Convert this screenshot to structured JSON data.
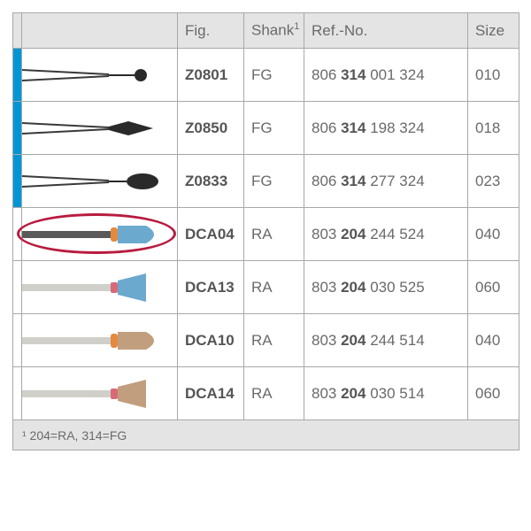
{
  "colors": {
    "border": "#a8a8a8",
    "header_bg": "#e4e4e4",
    "text": "#6a6a6a",
    "text_bold": "#555555",
    "marker": "#0096d6",
    "circle": "#b81b3f",
    "shaft_dark": "#3a3a3a",
    "shaft_light": "#d0cfc9",
    "tip_black": "#2a2a2a",
    "tip_blue": "#6ca9cf",
    "tip_tan": "#c19f7e",
    "band_orange": "#e38a3f",
    "band_pink": "#d86a78"
  },
  "headers": {
    "fig": "Fig.",
    "shank": "Shank",
    "shank_sup": "1",
    "ref": "Ref.-No.",
    "size": "Size"
  },
  "footnote": "¹ 204=RA, 314=FG",
  "rows": [
    {
      "marker": true,
      "circled": false,
      "fig": "Z0801",
      "shank": "FG",
      "ref_pre": "806 ",
      "ref_bold": "314",
      "ref_post": " 001 324",
      "size": "010",
      "shape": "ball",
      "shaft": "wire",
      "tip_color": "#2a2a2a"
    },
    {
      "marker": true,
      "circled": false,
      "fig": "Z0850",
      "shank": "FG",
      "ref_pre": "806 ",
      "ref_bold": "314",
      "ref_post": " 198 324",
      "size": "018",
      "shape": "taper",
      "shaft": "wire",
      "tip_color": "#2a2a2a"
    },
    {
      "marker": true,
      "circled": false,
      "fig": "Z0833",
      "shank": "FG",
      "ref_pre": "806 ",
      "ref_bold": "314",
      "ref_post": " 277 324",
      "size": "023",
      "shape": "oval",
      "shaft": "wire",
      "tip_color": "#2a2a2a"
    },
    {
      "marker": false,
      "circled": true,
      "fig": "DCA04",
      "shank": "RA",
      "ref_pre": "803 ",
      "ref_bold": "204",
      "ref_post": " 244 524",
      "size": "040",
      "shape": "bullet",
      "shaft": "bar-dark",
      "tip_color": "#6ca9cf",
      "band_color": "#e38a3f"
    },
    {
      "marker": false,
      "circled": false,
      "fig": "DCA13",
      "shank": "RA",
      "ref_pre": "803 ",
      "ref_bold": "204",
      "ref_post": " 030 525",
      "size": "060",
      "shape": "cup",
      "shaft": "bar-light",
      "tip_color": "#6ca9cf",
      "band_color": "#d86a78"
    },
    {
      "marker": false,
      "circled": false,
      "fig": "DCA10",
      "shank": "RA",
      "ref_pre": "803 ",
      "ref_bold": "204",
      "ref_post": " 244 514",
      "size": "040",
      "shape": "bullet",
      "shaft": "bar-light",
      "tip_color": "#c19f7e",
      "band_color": "#e38a3f"
    },
    {
      "marker": false,
      "circled": false,
      "fig": "DCA14",
      "shank": "RA",
      "ref_pre": "803 ",
      "ref_bold": "204",
      "ref_post": " 030 514",
      "size": "060",
      "shape": "cup",
      "shaft": "bar-light",
      "tip_color": "#c19f7e",
      "band_color": "#d86a78"
    }
  ]
}
